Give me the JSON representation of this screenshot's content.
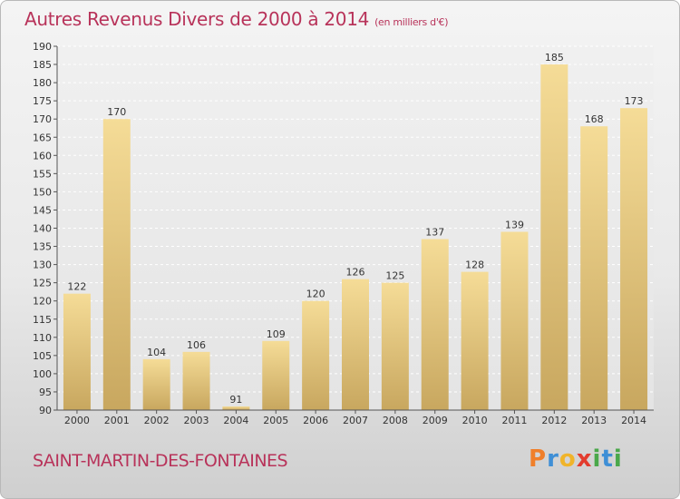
{
  "title": "Autres Revenus Divers de 2000 à 2014",
  "subtitle": "(en milliers d'€)",
  "commune": "SAINT-MARTIN-DES-FONTAINES",
  "brand": {
    "letters": [
      "P",
      "r",
      "o",
      "x",
      "i",
      "t",
      "i"
    ],
    "colors": [
      "#f07f2a",
      "#3f8fd6",
      "#f0b42a",
      "#e33c2e",
      "#4aa84a",
      "#3f8fd6",
      "#4aa84a"
    ]
  },
  "chart_data": {
    "type": "bar",
    "categories": [
      "2000",
      "2001",
      "2002",
      "2003",
      "2004",
      "2005",
      "2006",
      "2007",
      "2008",
      "2009",
      "2010",
      "2011",
      "2012",
      "2013",
      "2014"
    ],
    "values": [
      122,
      170,
      104,
      106,
      91,
      109,
      120,
      126,
      125,
      137,
      128,
      139,
      185,
      168,
      173
    ],
    "ylim": [
      90,
      190
    ],
    "yticks": [
      90,
      95,
      100,
      105,
      110,
      115,
      120,
      125,
      130,
      135,
      140,
      145,
      150,
      155,
      160,
      165,
      170,
      175,
      180,
      185,
      190
    ],
    "grid": true,
    "bar_color": "#f0d690"
  }
}
